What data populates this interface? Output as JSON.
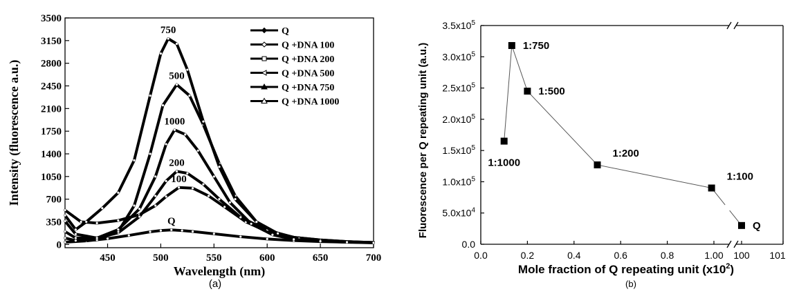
{
  "chart_data": [
    {
      "type": "line",
      "panel_label": "(a)",
      "xlabel": "Wavelength (nm)",
      "ylabel": "Intensity (fluorescence a.u.)",
      "xlim": [
        410,
        700
      ],
      "ylim": [
        -50,
        3500
      ],
      "xticks": [
        450,
        500,
        550,
        600,
        650,
        700
      ],
      "yticks": [
        0,
        350,
        700,
        1050,
        1400,
        1750,
        2100,
        2450,
        2800,
        3150,
        3500
      ],
      "legend_position": "top-right",
      "series": [
        {
          "name": "Q",
          "marker": "filled-diamond",
          "peak_label": "Q",
          "peak_x": 510,
          "x": [
            410,
            430,
            450,
            470,
            490,
            500,
            510,
            520,
            530,
            550,
            575,
            600,
            625,
            650,
            675,
            700
          ],
          "y": [
            35,
            55,
            90,
            140,
            195,
            215,
            225,
            215,
            200,
            165,
            120,
            85,
            60,
            45,
            35,
            28
          ]
        },
        {
          "name": "Q +DNA 100",
          "marker": "open-diamond",
          "peak_label": "100",
          "peak_x": 517,
          "x": [
            410,
            425,
            440,
            460,
            480,
            495,
            505,
            517,
            530,
            545,
            560,
            580,
            600,
            625,
            650,
            675,
            700
          ],
          "y": [
            530,
            350,
            330,
            370,
            460,
            600,
            740,
            880,
            870,
            750,
            580,
            350,
            200,
            110,
            70,
            45,
            30
          ]
        },
        {
          "name": "Q +DNA 200",
          "marker": "open-square",
          "peak_label": "200",
          "peak_x": 515,
          "x": [
            410,
            420,
            440,
            460,
            480,
            495,
            505,
            515,
            525,
            540,
            555,
            575,
            600,
            625,
            650,
            675,
            700
          ],
          "y": [
            360,
            160,
            100,
            180,
            430,
            750,
            980,
            1130,
            1100,
            930,
            700,
            420,
            220,
            110,
            70,
            45,
            30
          ]
        },
        {
          "name": "Q +DNA 500",
          "marker": "open-triangle-left",
          "peak_label": "500",
          "peak_x": 515,
          "x": [
            410,
            420,
            440,
            460,
            475,
            490,
            502,
            515,
            527,
            540,
            555,
            570,
            590,
            610,
            630,
            650,
            675,
            700
          ],
          "y": [
            100,
            60,
            70,
            200,
            600,
            1400,
            2150,
            2470,
            2300,
            1850,
            1250,
            750,
            350,
            160,
            90,
            60,
            40,
            30
          ]
        },
        {
          "name": "Q +DNA 750",
          "marker": "filled-triangle",
          "peak_label": "750",
          "peak_x": 507,
          "x": [
            410,
            420,
            430,
            445,
            460,
            475,
            490,
            500,
            507,
            515,
            525,
            540,
            555,
            570,
            590,
            610,
            630,
            650,
            675,
            700
          ],
          "y": [
            450,
            230,
            350,
            560,
            800,
            1300,
            2300,
            2950,
            3180,
            3100,
            2700,
            1900,
            1200,
            700,
            350,
            170,
            90,
            60,
            40,
            30
          ]
        },
        {
          "name": "Q +DNA 1000",
          "marker": "open-triangle",
          "peak_label": "1000",
          "peak_x": 513,
          "x": [
            410,
            420,
            440,
            460,
            480,
            495,
            505,
            513,
            523,
            535,
            550,
            565,
            585,
            605,
            625,
            650,
            675,
            700
          ],
          "y": [
            200,
            100,
            100,
            230,
            550,
            1050,
            1550,
            1770,
            1700,
            1450,
            1050,
            650,
            320,
            150,
            80,
            50,
            35,
            25
          ]
        }
      ]
    },
    {
      "type": "scatter",
      "panel_label": "(b)",
      "xlabel": "Mole fraction of Q repeating unit (x10",
      "xlabel_sup": "2",
      "xlabel_end": ")",
      "ylabel": "Fluorescence per Q repeating unit (a.u.)",
      "axis_break": true,
      "x_left_range": [
        0.0,
        1.0
      ],
      "x_right_range": [
        100,
        101
      ],
      "x_left_ticks": [
        "0.0",
        "0.2",
        "0.4",
        "0.6",
        "0.8",
        "1.00"
      ],
      "x_right_ticks": [
        "100",
        "101"
      ],
      "y_ticks": [
        {
          "m": "0.0",
          "e": ""
        },
        {
          "m": "5.0x10",
          "e": "4"
        },
        {
          "m": "1.0x10",
          "e": "5"
        },
        {
          "m": "1.5x10",
          "e": "5"
        },
        {
          "m": "2.0x10",
          "e": "5"
        },
        {
          "m": "2.5x10",
          "e": "5"
        },
        {
          "m": "3.0x10",
          "e": "5"
        },
        {
          "m": "3.5x10",
          "e": "5"
        }
      ],
      "ylim": [
        0,
        350000
      ],
      "points": [
        {
          "x": 0.1,
          "y": 165000,
          "label": "1:1000",
          "label_side": "below-left"
        },
        {
          "x": 0.133,
          "y": 318000,
          "label": "1:750",
          "label_side": "right"
        },
        {
          "x": 0.2,
          "y": 245000,
          "label": "1:500",
          "label_side": "right"
        },
        {
          "x": 0.5,
          "y": 127000,
          "label": "1:200",
          "label_side": "upper-right"
        },
        {
          "x": 0.99,
          "y": 90000,
          "label": "1:100",
          "label_side": "upper-right"
        },
        {
          "x": 100.0,
          "y": 30000,
          "label": "Q",
          "label_side": "right"
        }
      ]
    }
  ]
}
